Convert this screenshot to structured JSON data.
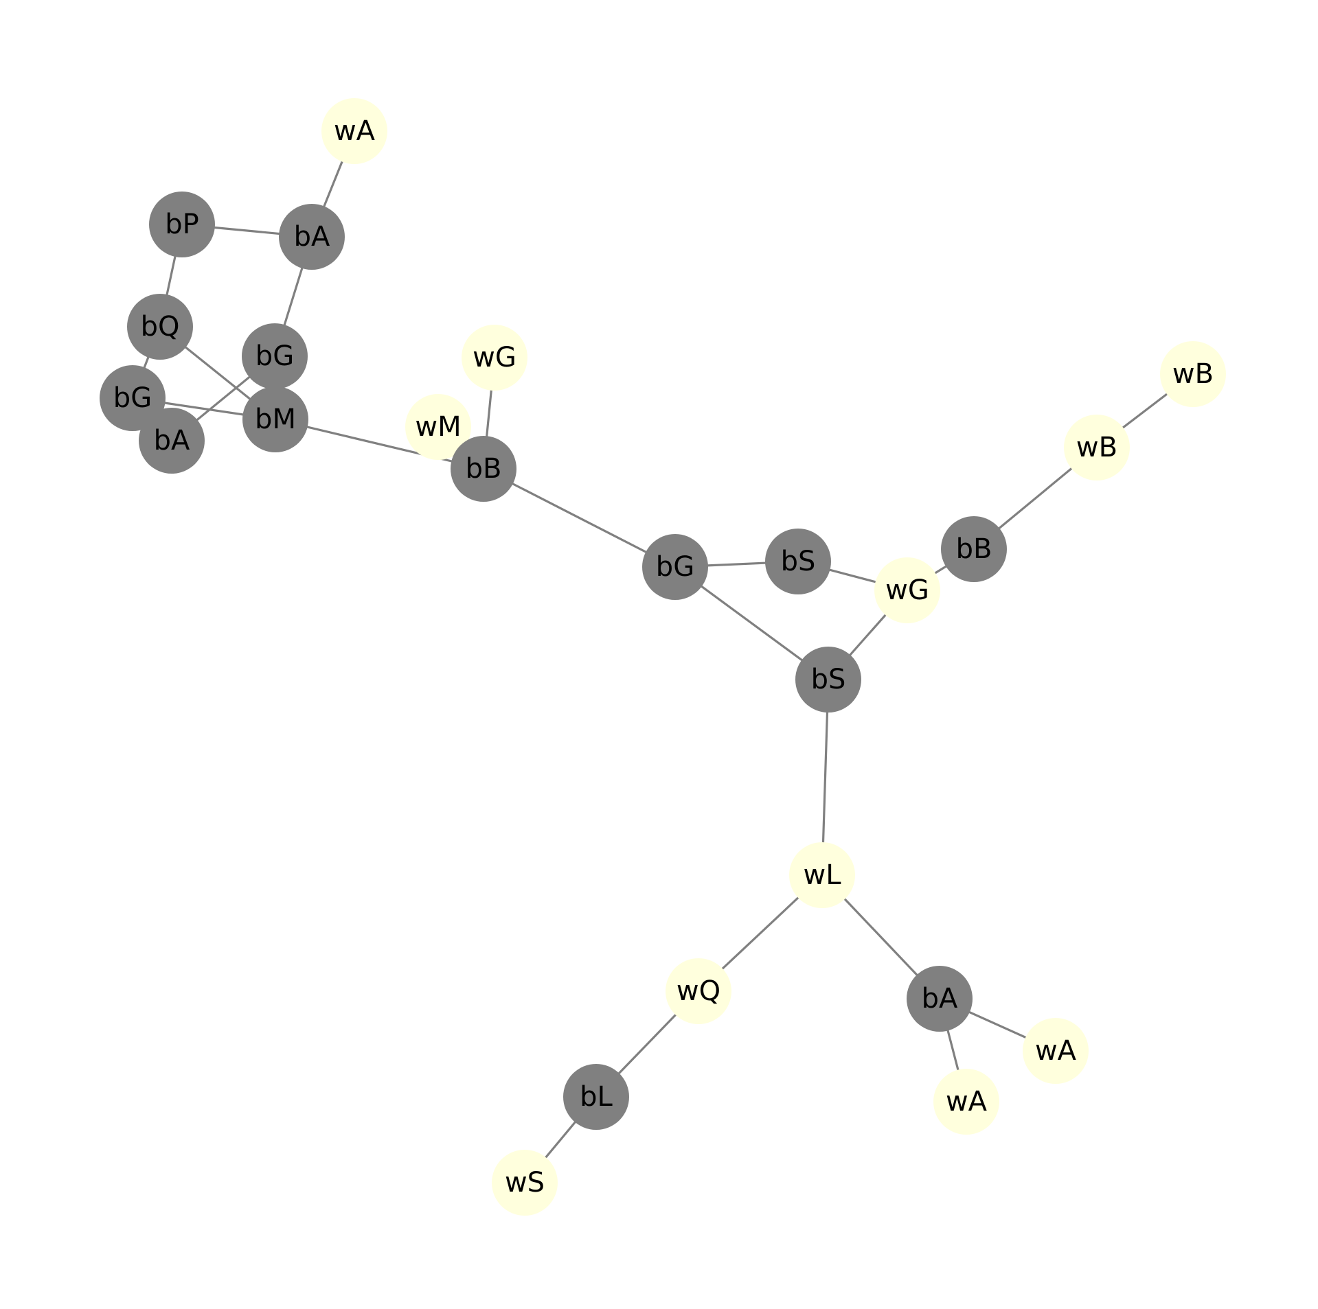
{
  "colors": {
    "background": "#ffffff",
    "edge": "#808080",
    "black_node": "#808080",
    "white_node": "#ffffdd",
    "label": "#000000"
  },
  "nodes": [
    {
      "id": "n1",
      "label": "wA",
      "color": "white"
    },
    {
      "id": "n2",
      "label": "bP",
      "color": "black"
    },
    {
      "id": "n3",
      "label": "bA",
      "color": "black"
    },
    {
      "id": "n4",
      "label": "bQ",
      "color": "black"
    },
    {
      "id": "n5",
      "label": "bG",
      "color": "black"
    },
    {
      "id": "n6",
      "label": "bG",
      "color": "black"
    },
    {
      "id": "n7",
      "label": "bA",
      "color": "black"
    },
    {
      "id": "n8",
      "label": "bM",
      "color": "black"
    },
    {
      "id": "n9",
      "label": "wG",
      "color": "white"
    },
    {
      "id": "n10",
      "label": "wM",
      "color": "white"
    },
    {
      "id": "n11",
      "label": "bB",
      "color": "black"
    },
    {
      "id": "n12",
      "label": "bG",
      "color": "black"
    },
    {
      "id": "n13",
      "label": "bS",
      "color": "black"
    },
    {
      "id": "n14",
      "label": "wG",
      "color": "white"
    },
    {
      "id": "n15",
      "label": "bB",
      "color": "black"
    },
    {
      "id": "n16",
      "label": "wB",
      "color": "white"
    },
    {
      "id": "n17",
      "label": "wB",
      "color": "white"
    },
    {
      "id": "n18",
      "label": "bS",
      "color": "black"
    },
    {
      "id": "n19",
      "label": "wL",
      "color": "white"
    },
    {
      "id": "n20",
      "label": "wQ",
      "color": "white"
    },
    {
      "id": "n21",
      "label": "bA",
      "color": "black"
    },
    {
      "id": "n22",
      "label": "wA",
      "color": "white"
    },
    {
      "id": "n23",
      "label": "wA",
      "color": "white"
    },
    {
      "id": "n24",
      "label": "bL",
      "color": "black"
    },
    {
      "id": "n25",
      "label": "wS",
      "color": "white"
    }
  ],
  "edges": [
    [
      "n1",
      "n3"
    ],
    [
      "n2",
      "n3"
    ],
    [
      "n2",
      "n4"
    ],
    [
      "n3",
      "n5"
    ],
    [
      "n4",
      "n6"
    ],
    [
      "n4",
      "n8"
    ],
    [
      "n5",
      "n7"
    ],
    [
      "n6",
      "n8"
    ],
    [
      "n8",
      "n11"
    ],
    [
      "n9",
      "n11"
    ],
    [
      "n11",
      "n12"
    ],
    [
      "n12",
      "n13"
    ],
    [
      "n12",
      "n18"
    ],
    [
      "n13",
      "n14"
    ],
    [
      "n14",
      "n15"
    ],
    [
      "n14",
      "n18"
    ],
    [
      "n15",
      "n16"
    ],
    [
      "n16",
      "n17"
    ],
    [
      "n18",
      "n19"
    ],
    [
      "n19",
      "n20"
    ],
    [
      "n19",
      "n21"
    ],
    [
      "n21",
      "n22"
    ],
    [
      "n21",
      "n23"
    ],
    [
      "n20",
      "n24"
    ],
    [
      "n24",
      "n25"
    ]
  ]
}
